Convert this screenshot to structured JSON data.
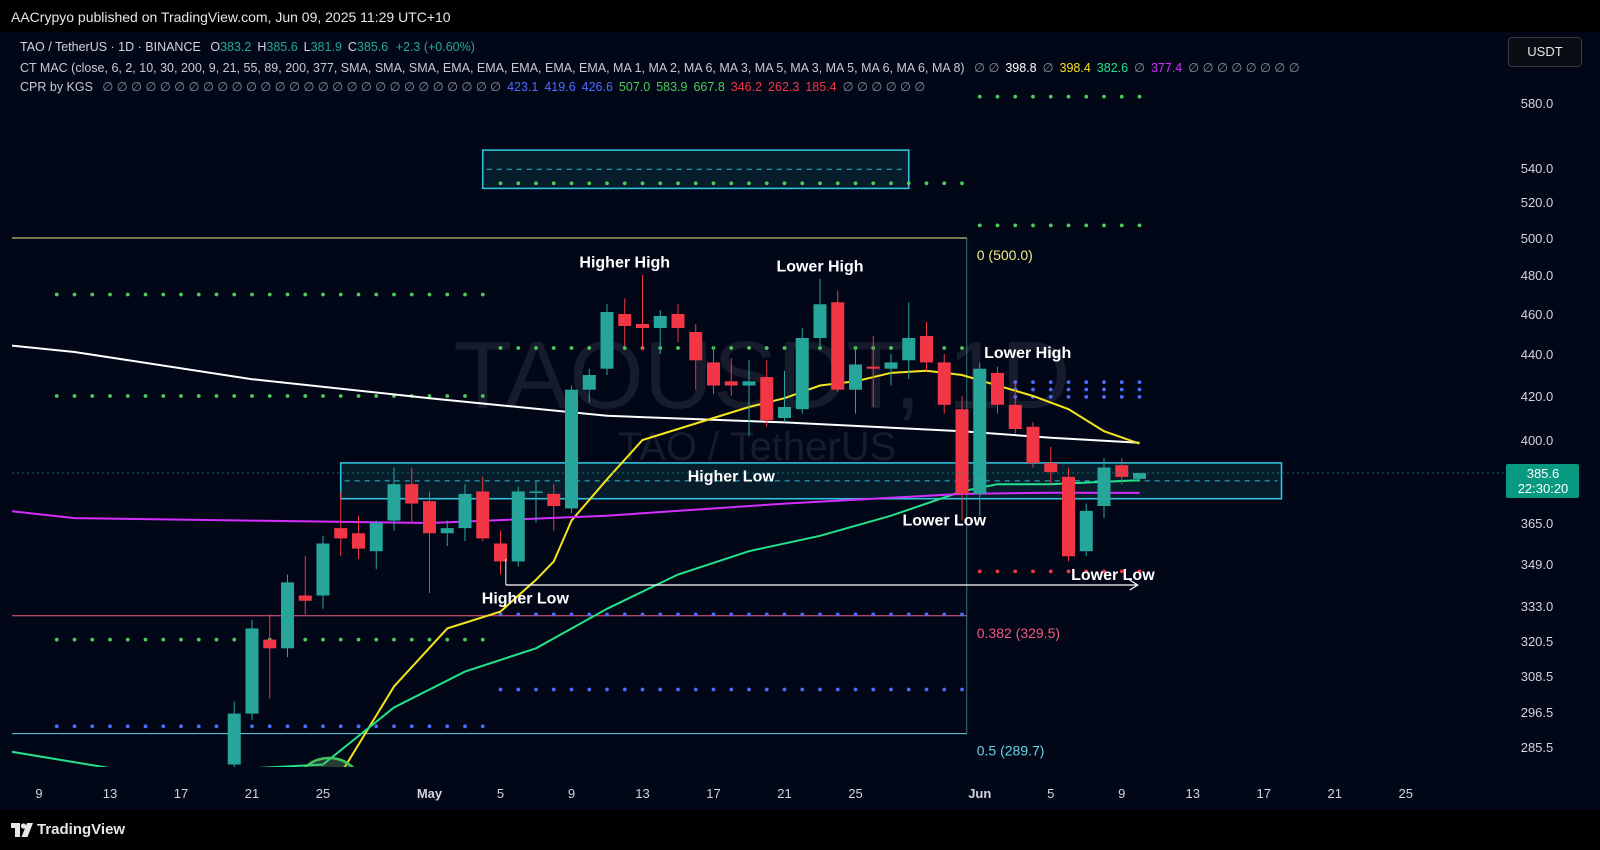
{
  "header": {
    "publisher": "AACrypyo published on TradingView.com, Jun 09, 2025 11:29 UTC+10"
  },
  "footer": {
    "brand": "TradingView"
  },
  "currency_button": "USDT",
  "watermark": {
    "symbol": "TAOUSDT, 1D",
    "name": "TAO / TetherUS"
  },
  "legend": {
    "symbol": "TAO / TetherUS · 1D · BINANCE",
    "ohlc": [
      {
        "k": "O",
        "v": "383.2"
      },
      {
        "k": "H",
        "v": "385.6"
      },
      {
        "k": "L",
        "v": "381.9"
      },
      {
        "k": "C",
        "v": "385.6"
      }
    ],
    "change": "+2.3 (+0.60%)",
    "mac_label": "CT MAC (close, 6, 2, 10, 30, 200, 9, 21, 55, 89, 200, 377, SMA, SMA, SMA, EMA, EMA, EMA, EMA, EMA, MA 1, MA 2, MA 6, MA 3, MA 5, MA 3, MA 5, MA 6, MA 6, MA 8)",
    "mac_tokens": [
      {
        "t": "∅ ∅",
        "c": "#8a8e99"
      },
      {
        "t": "398.8",
        "c": "#ffffff"
      },
      {
        "t": "∅",
        "c": "#8a8e99"
      },
      {
        "t": "398.4",
        "c": "#f7e11a"
      },
      {
        "t": "382.6",
        "c": "#22e38a"
      },
      {
        "t": "∅",
        "c": "#8a8e99"
      },
      {
        "t": "377.4",
        "c": "#d62dff"
      },
      {
        "t": "∅ ∅ ∅ ∅ ∅ ∅ ∅ ∅",
        "c": "#8a8e99"
      }
    ],
    "cpr_label": "CPR by KGS",
    "cpr_tokens": [
      {
        "t": "∅ ∅ ∅ ∅ ∅ ∅ ∅ ∅ ∅ ∅ ∅ ∅ ∅ ∅ ∅ ∅ ∅ ∅ ∅ ∅ ∅ ∅ ∅ ∅ ∅ ∅ ∅ ∅",
        "c": "#8a8e99"
      },
      {
        "t": "423.1",
        "c": "#4e6bff"
      },
      {
        "t": "419.6",
        "c": "#4e6bff"
      },
      {
        "t": "426.6",
        "c": "#4e6bff"
      },
      {
        "t": "507.0",
        "c": "#4fc95a"
      },
      {
        "t": "583.9",
        "c": "#4fc95a"
      },
      {
        "t": "667.8",
        "c": "#4fc95a"
      },
      {
        "t": "346.2",
        "c": "#f23645"
      },
      {
        "t": "262.3",
        "c": "#f23645"
      },
      {
        "t": "185.4",
        "c": "#f23645"
      },
      {
        "t": "∅ ∅ ∅ ∅ ∅ ∅",
        "c": "#8a8e99"
      }
    ]
  },
  "chart_data": {
    "type": "candlestick",
    "symbol": "TAO / TetherUS",
    "interval": "1D",
    "exchange": "BINANCE",
    "y_axis_ticks": [
      580.0,
      540.0,
      520.0,
      500.0,
      480.0,
      460.0,
      440.0,
      420.0,
      400.0,
      365.0,
      349.0,
      333.0,
      320.5,
      308.5,
      296.5,
      285.5
    ],
    "price_label": {
      "price": "385.6",
      "countdown": "22:30:20",
      "color": "#089981"
    },
    "x_axis_ticks": [
      {
        "label": "9",
        "day": 8
      },
      {
        "label": "13",
        "day": 12
      },
      {
        "label": "17",
        "day": 16
      },
      {
        "label": "21",
        "day": 20
      },
      {
        "label": "25",
        "day": 24
      },
      {
        "label": "May",
        "day": 30
      },
      {
        "label": "5",
        "day": 34
      },
      {
        "label": "9",
        "day": 38
      },
      {
        "label": "13",
        "day": 42
      },
      {
        "label": "17",
        "day": 46
      },
      {
        "label": "21",
        "day": 50
      },
      {
        "label": "25",
        "day": 54
      },
      {
        "label": "Jun",
        "day": 61
      },
      {
        "label": "5",
        "day": 65
      },
      {
        "label": "9",
        "day": 69
      },
      {
        "label": "13",
        "day": 73
      },
      {
        "label": "17",
        "day": 77
      },
      {
        "label": "21",
        "day": 81
      },
      {
        "label": "25",
        "day": 85
      }
    ],
    "candles": [
      {
        "day": 19,
        "o": 280,
        "h": 300,
        "l": 278,
        "c": 296
      },
      {
        "day": 20,
        "o": 296,
        "h": 328,
        "l": 294,
        "c": 325
      },
      {
        "day": 21,
        "o": 321,
        "h": 330,
        "l": 301,
        "c": 318
      },
      {
        "day": 22,
        "o": 318,
        "h": 345,
        "l": 315,
        "c": 342
      },
      {
        "day": 23,
        "o": 337,
        "h": 352,
        "l": 330,
        "c": 335
      },
      {
        "day": 24,
        "o": 337,
        "h": 360,
        "l": 332,
        "c": 357
      },
      {
        "day": 25,
        "o": 363,
        "h": 378,
        "l": 352,
        "c": 359
      },
      {
        "day": 26,
        "o": 361,
        "h": 368,
        "l": 351,
        "c": 355
      },
      {
        "day": 27,
        "o": 354,
        "h": 366,
        "l": 347,
        "c": 365
      },
      {
        "day": 28,
        "o": 366,
        "h": 388,
        "l": 362,
        "c": 381
      },
      {
        "day": 29,
        "o": 381,
        "h": 388,
        "l": 365,
        "c": 373
      },
      {
        "day": 30,
        "o": 374,
        "h": 378,
        "l": 338,
        "c": 361
      },
      {
        "day": 31,
        "o": 361,
        "h": 366,
        "l": 356,
        "c": 363
      },
      {
        "day": 32,
        "o": 363,
        "h": 381,
        "l": 358,
        "c": 377
      },
      {
        "day": 33,
        "o": 378,
        "h": 384,
        "l": 358,
        "c": 359
      },
      {
        "day": 34,
        "o": 357,
        "h": 362,
        "l": 345,
        "c": 350
      },
      {
        "day": 35,
        "o": 350,
        "h": 380,
        "l": 348,
        "c": 378
      },
      {
        "day": 36,
        "o": 378,
        "h": 382,
        "l": 365,
        "c": 378
      },
      {
        "day": 37,
        "o": 377,
        "h": 381,
        "l": 362,
        "c": 372
      },
      {
        "day": 38,
        "o": 371,
        "h": 425,
        "l": 369,
        "c": 423
      },
      {
        "day": 39,
        "o": 423,
        "h": 433,
        "l": 417,
        "c": 430
      },
      {
        "day": 40,
        "o": 433,
        "h": 465,
        "l": 430,
        "c": 461
      },
      {
        "day": 41,
        "o": 460,
        "h": 468,
        "l": 444,
        "c": 454
      },
      {
        "day": 42,
        "o": 455,
        "h": 480,
        "l": 442,
        "c": 453
      },
      {
        "day": 43,
        "o": 453,
        "h": 462,
        "l": 440,
        "c": 459
      },
      {
        "day": 44,
        "o": 460,
        "h": 465,
        "l": 446,
        "c": 453
      },
      {
        "day": 45,
        "o": 451,
        "h": 455,
        "l": 423,
        "c": 437
      },
      {
        "day": 46,
        "o": 436,
        "h": 444,
        "l": 421,
        "c": 425
      },
      {
        "day": 47,
        "o": 427,
        "h": 438,
        "l": 420,
        "c": 425
      },
      {
        "day": 48,
        "o": 425,
        "h": 437,
        "l": 402,
        "c": 427
      },
      {
        "day": 49,
        "o": 429,
        "h": 437,
        "l": 406,
        "c": 409
      },
      {
        "day": 50,
        "o": 410,
        "h": 432,
        "l": 408,
        "c": 415
      },
      {
        "day": 51,
        "o": 414,
        "h": 453,
        "l": 412,
        "c": 448
      },
      {
        "day": 52,
        "o": 448,
        "h": 478,
        "l": 443,
        "c": 465
      },
      {
        "day": 53,
        "o": 466,
        "h": 472,
        "l": 422,
        "c": 423
      },
      {
        "day": 54,
        "o": 423,
        "h": 444,
        "l": 412,
        "c": 435
      },
      {
        "day": 55,
        "o": 434,
        "h": 449,
        "l": 415,
        "c": 433
      },
      {
        "day": 56,
        "o": 433,
        "h": 440,
        "l": 425,
        "c": 436
      },
      {
        "day": 57,
        "o": 437,
        "h": 466,
        "l": 428,
        "c": 448
      },
      {
        "day": 58,
        "o": 449,
        "h": 456,
        "l": 432,
        "c": 436
      },
      {
        "day": 59,
        "o": 436,
        "h": 440,
        "l": 412,
        "c": 416
      },
      {
        "day": 60,
        "o": 414,
        "h": 420,
        "l": 366,
        "c": 377
      },
      {
        "day": 61,
        "o": 377,
        "h": 436,
        "l": 368,
        "c": 433
      },
      {
        "day": 62,
        "o": 431,
        "h": 434,
        "l": 412,
        "c": 416
      },
      {
        "day": 63,
        "o": 416,
        "h": 427,
        "l": 403,
        "c": 405
      },
      {
        "day": 64,
        "o": 406,
        "h": 408,
        "l": 388,
        "c": 390
      },
      {
        "day": 65,
        "o": 390,
        "h": 397,
        "l": 381,
        "c": 386
      },
      {
        "day": 66,
        "o": 384,
        "h": 388,
        "l": 350,
        "c": 352
      },
      {
        "day": 67,
        "o": 354,
        "h": 373,
        "l": 352,
        "c": 370
      },
      {
        "day": 68,
        "o": 372,
        "h": 392,
        "l": 367,
        "c": 388
      },
      {
        "day": 69,
        "o": 389,
        "h": 392,
        "l": 381,
        "c": 384
      },
      {
        "day": 70,
        "o": 383.2,
        "h": 385.6,
        "l": 381.9,
        "c": 385.6
      }
    ],
    "moving_averages": [
      {
        "name": "MA white",
        "color": "#ffffff",
        "points": [
          [
            0,
            450
          ],
          [
            10,
            441
          ],
          [
            20,
            428
          ],
          [
            30,
            419
          ],
          [
            40,
            411
          ],
          [
            50,
            408
          ],
          [
            60,
            404
          ],
          [
            65,
            401
          ],
          [
            70,
            398.8
          ]
        ]
      },
      {
        "name": "MA yellow",
        "color": "#f5e51c",
        "points": [
          [
            24,
            268
          ],
          [
            28,
            305
          ],
          [
            31,
            325
          ],
          [
            34,
            331
          ],
          [
            36,
            343
          ],
          [
            37,
            350
          ],
          [
            38,
            366
          ],
          [
            40,
            383
          ],
          [
            42,
            400
          ],
          [
            44,
            405
          ],
          [
            46,
            410
          ],
          [
            48,
            415
          ],
          [
            50,
            419
          ],
          [
            52,
            425
          ],
          [
            54,
            427
          ],
          [
            56,
            431
          ],
          [
            58,
            432
          ],
          [
            60,
            430
          ],
          [
            62,
            425
          ],
          [
            64,
            420
          ],
          [
            66,
            414
          ],
          [
            68,
            404
          ],
          [
            70,
            398.4
          ]
        ]
      },
      {
        "name": "MA green",
        "color": "#22e38a",
        "points": [
          [
            0,
            290
          ],
          [
            14,
            277
          ],
          [
            24,
            280
          ],
          [
            28,
            298
          ],
          [
            32,
            310
          ],
          [
            36,
            318
          ],
          [
            40,
            332
          ],
          [
            44,
            345
          ],
          [
            48,
            354
          ],
          [
            52,
            360
          ],
          [
            56,
            368
          ],
          [
            60,
            378
          ],
          [
            62,
            381
          ],
          [
            65,
            381
          ],
          [
            68,
            382
          ],
          [
            70,
            382.6
          ]
        ]
      },
      {
        "name": "MA magenta",
        "color": "#d62dff",
        "points": [
          [
            0,
            375
          ],
          [
            10,
            367
          ],
          [
            20,
            366
          ],
          [
            30,
            365
          ],
          [
            40,
            368
          ],
          [
            50,
            373
          ],
          [
            55,
            375
          ],
          [
            60,
            377
          ],
          [
            65,
            377.5
          ],
          [
            70,
            377.4
          ]
        ]
      }
    ],
    "cpr_levels": [
      {
        "d0": 9,
        "d1": 33,
        "price": 470,
        "color": "#4fc95a"
      },
      {
        "d0": 9,
        "d1": 33,
        "price": 420,
        "color": "#4fc95a"
      },
      {
        "d0": 9,
        "d1": 33,
        "price": 321,
        "color": "#4fc95a"
      },
      {
        "d0": 9,
        "d1": 33,
        "price": 292,
        "color": "#4e6bff"
      },
      {
        "d0": 34,
        "d1": 60,
        "price": 531,
        "color": "#4fc95a"
      },
      {
        "d0": 34,
        "d1": 60,
        "price": 443,
        "color": "#4fc95a"
      },
      {
        "d0": 34,
        "d1": 60,
        "price": 330,
        "color": "#4e6bff"
      },
      {
        "d0": 34,
        "d1": 60,
        "price": 304,
        "color": "#4e6bff"
      },
      {
        "d0": 61,
        "d1": 70,
        "price": 583.9,
        "color": "#4fc95a"
      },
      {
        "d0": 61,
        "d1": 70,
        "price": 507.0,
        "color": "#4fc95a"
      },
      {
        "d0": 61,
        "d1": 70,
        "price": 426.6,
        "color": "#4e6bff"
      },
      {
        "d0": 61,
        "d1": 70,
        "price": 423.1,
        "color": "#4e6bff"
      },
      {
        "d0": 61,
        "d1": 70,
        "price": 419.6,
        "color": "#4e6bff"
      },
      {
        "d0": 61,
        "d1": 70,
        "price": 346.2,
        "color": "#f23645"
      }
    ],
    "fib_levels": [
      {
        "label": "0 (500.0)",
        "price": 500.0,
        "color": "#f1ea82"
      },
      {
        "label": "0.382 (329.5)",
        "price": 329.5,
        "color": "#f05a7e"
      },
      {
        "label": "0.5 (289.7)",
        "price": 289.7,
        "color": "#67d4e6"
      }
    ],
    "zones": [
      {
        "d0": 33,
        "d1": 57,
        "top": 551,
        "bottom": 528
      },
      {
        "d0": 25,
        "d1": 78,
        "top": 390,
        "bottom": 375
      }
    ],
    "annotations": [
      {
        "text": "Higher High",
        "day": 41,
        "price": 484
      },
      {
        "text": "Lower High",
        "day": 52,
        "price": 482
      },
      {
        "text": "Lower High",
        "day": 63.7,
        "price": 438
      },
      {
        "text": "Higher Low",
        "day": 47,
        "price": 382
      },
      {
        "text": "Lower Low",
        "day": 59,
        "price": 364
      },
      {
        "text": "Higher Low",
        "day": 35.4,
        "price": 334
      },
      {
        "text": "Lower Low",
        "day": 68.5,
        "price": 343
      }
    ]
  }
}
